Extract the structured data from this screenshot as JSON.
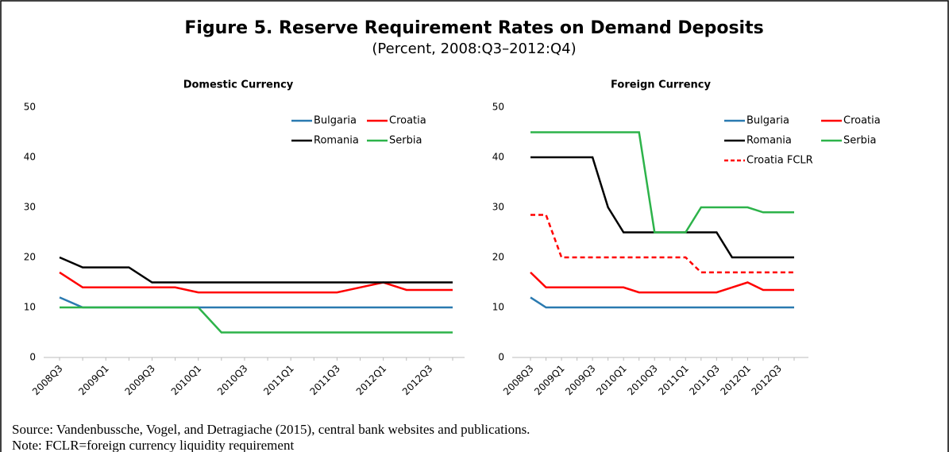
{
  "title": "Figure 5. Reserve Requirement Rates on Demand Deposits",
  "subtitle": "(Percent, 2008:Q3–2012:Q4)",
  "source": "Source: Vandenbussche, Vogel, and Detragiache (2015), central bank websites and publications.",
  "note": "Note: FCLR=foreign currency liquidity requirement",
  "chart_data": [
    {
      "type": "line",
      "title": "Domestic Currency",
      "categories": [
        "2008Q3",
        null,
        "2009Q1",
        null,
        "2009Q3",
        null,
        "2010Q1",
        null,
        "2010Q3",
        null,
        "2011Q1",
        null,
        "2011Q3",
        null,
        "2012Q1",
        null,
        "2012Q3",
        null
      ],
      "ylim": [
        0,
        50
      ],
      "yticks": [
        0,
        10,
        20,
        30,
        40,
        50
      ],
      "legend": "upper right",
      "series": [
        {
          "name": "Bulgaria",
          "color": "#2a7ab0",
          "values": [
            12,
            10,
            10,
            10,
            10,
            10,
            10,
            10,
            10,
            10,
            10,
            10,
            10,
            10,
            10,
            10,
            10,
            10
          ]
        },
        {
          "name": "Croatia",
          "color": "#ff0000",
          "values": [
            17,
            14,
            14,
            14,
            14,
            14,
            13,
            13,
            13,
            13,
            13,
            13,
            13,
            14,
            15,
            13.5,
            13.5,
            13.5
          ]
        },
        {
          "name": "Romania",
          "color": "#000000",
          "values": [
            20,
            18,
            18,
            18,
            15,
            15,
            15,
            15,
            15,
            15,
            15,
            15,
            15,
            15,
            15,
            15,
            15,
            15
          ]
        },
        {
          "name": "Serbia",
          "color": "#2db34a",
          "values": [
            10,
            10,
            10,
            10,
            10,
            10,
            10,
            5,
            5,
            5,
            5,
            5,
            5,
            5,
            5,
            5,
            5,
            5
          ]
        }
      ]
    },
    {
      "type": "line",
      "title": "Foreign Currency",
      "categories": [
        "2008Q3",
        null,
        "2009Q1",
        null,
        "2009Q3",
        null,
        "2010Q1",
        null,
        "2010Q3",
        null,
        "2011Q1",
        null,
        "2011Q3",
        null,
        "2012Q1",
        null,
        "2012Q3",
        null
      ],
      "ylim": [
        0,
        50
      ],
      "yticks": [
        0,
        10,
        20,
        30,
        40,
        50
      ],
      "legend": "upper right",
      "series": [
        {
          "name": "Bulgaria",
          "color": "#2a7ab0",
          "values": [
            12,
            10,
            10,
            10,
            10,
            10,
            10,
            10,
            10,
            10,
            10,
            10,
            10,
            10,
            10,
            10,
            10,
            10
          ]
        },
        {
          "name": "Croatia",
          "color": "#ff0000",
          "values": [
            17,
            14,
            14,
            14,
            14,
            14,
            14,
            13,
            13,
            13,
            13,
            13,
            13,
            14,
            15,
            13.5,
            13.5,
            13.5
          ]
        },
        {
          "name": "Romania",
          "color": "#000000",
          "values": [
            40,
            40,
            40,
            40,
            40,
            30,
            25,
            25,
            25,
            25,
            25,
            25,
            25,
            20,
            20,
            20,
            20,
            20
          ]
        },
        {
          "name": "Serbia",
          "color": "#2db34a",
          "values": [
            45,
            45,
            45,
            45,
            45,
            45,
            45,
            45,
            25,
            25,
            25,
            30,
            30,
            30,
            30,
            29,
            29,
            29
          ]
        },
        {
          "name": "Croatia FCLR",
          "color": "#ff0000",
          "dashed": true,
          "values": [
            28.5,
            28.5,
            20,
            20,
            20,
            20,
            20,
            20,
            20,
            20,
            20,
            17,
            17,
            17,
            17,
            17,
            17,
            17
          ]
        }
      ]
    }
  ]
}
